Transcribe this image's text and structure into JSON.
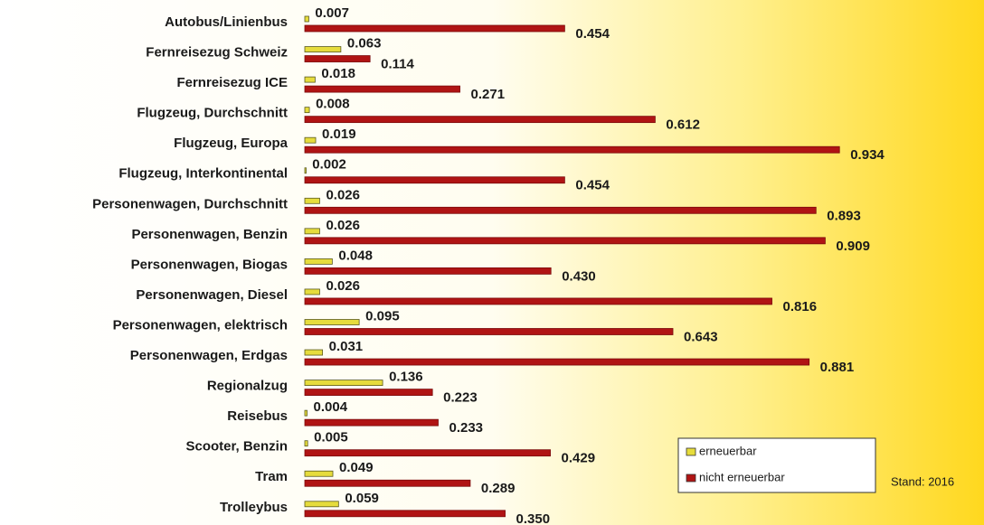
{
  "chart_data": {
    "type": "hbar",
    "categories": [
      "Autobus/Linienbus",
      "Fernreisezug Schweiz",
      "Fernreisezug ICE",
      "Flugzeug, Durchschnitt",
      "Flugzeug, Europa",
      "Flugzeug, Interkontinental",
      "Personenwagen, Durchschnitt",
      "Personenwagen, Benzin",
      "Personenwagen, Biogas",
      "Personenwagen, Diesel",
      "Personenwagen, elektrisch",
      "Personenwagen, Erdgas",
      "Regionalzug",
      "Reisebus",
      "Scooter, Benzin",
      "Tram",
      "Trolleybus"
    ],
    "series": [
      {
        "name": "erneuerbar",
        "color": "#e6dc3c",
        "values": [
          0.007,
          0.063,
          0.018,
          0.008,
          0.019,
          0.002,
          0.026,
          0.026,
          0.048,
          0.026,
          0.095,
          0.031,
          0.136,
          0.004,
          0.005,
          0.049,
          0.059
        ],
        "value_labels": [
          "0.007",
          "0.063",
          "0.018",
          "0.008",
          "0.019",
          "0.002",
          "0.026",
          "0.026",
          "0.048",
          "0.026",
          "0.095",
          "0.031",
          "0.136",
          "0.004",
          "0.005",
          "0.049",
          "0.059"
        ]
      },
      {
        "name": "nicht erneuerbar",
        "color": "#b01414",
        "values": [
          0.454,
          0.114,
          0.271,
          0.612,
          0.934,
          0.454,
          0.893,
          0.909,
          0.43,
          0.816,
          0.643,
          0.881,
          0.223,
          0.233,
          0.429,
          0.289,
          0.35
        ],
        "value_labels": [
          "0.454",
          "0.114",
          "0.271",
          "0.612",
          "0.934",
          "0.454",
          "0.893",
          "0.909",
          "0.430",
          "0.816",
          "0.643",
          "0.881",
          "0.223",
          "0.233",
          "0.429",
          "0.289",
          "0.350"
        ]
      }
    ],
    "legend": "lower right",
    "note": "Stand: 2016"
  }
}
